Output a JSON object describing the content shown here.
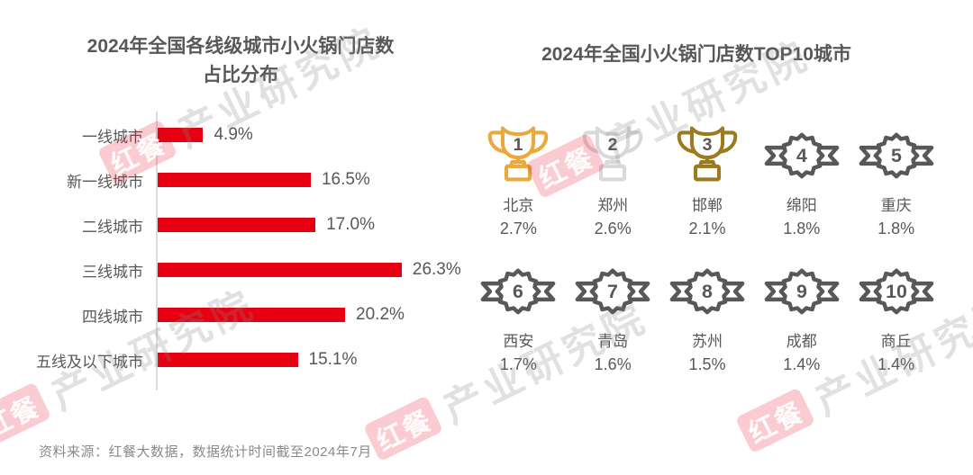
{
  "watermark": {
    "logo": "红餐",
    "text": "产业研究院"
  },
  "left_panel": {
    "title_line1": "2024年全国各线级城市小火锅门店数",
    "title_line2": "占比分布"
  },
  "right_panel": {
    "title": "2024年全国小火锅门店数TOP10城市"
  },
  "footer": {
    "source": "资料来源：红餐大数据，数据统计时间截至2024年7月"
  },
  "colors": {
    "bar_red": "#e60012",
    "text_dark": "#595757",
    "axis_gray": "#dcdcdc",
    "footer_gray": "#8a8a8a",
    "gold": "#eaa93a",
    "silver": "#d9d9d9",
    "bronze": "#9c7a1e",
    "badge_gray": "#595757",
    "watermark_red": "rgba(230,0,24,0.20)",
    "watermark_gray": "rgba(135,135,135,0.25)"
  },
  "chart_data": [
    {
      "type": "bar",
      "orientation": "horizontal",
      "title": "2024年全国各线级城市小火锅门店数占比分布",
      "categories": [
        "一线城市",
        "新一线城市",
        "二线城市",
        "三线城市",
        "四线城市",
        "五线及以下城市"
      ],
      "values": [
        4.9,
        16.5,
        17.0,
        26.3,
        20.2,
        15.1
      ],
      "value_labels": [
        "4.9%",
        "16.5%",
        "17.0%",
        "26.3%",
        "20.2%",
        "15.1%"
      ],
      "unit": "%",
      "xlim": [
        0,
        30
      ],
      "grid": false,
      "legend": false,
      "bar_color": "#e60012"
    },
    {
      "type": "table",
      "title": "2024年全国小火锅门店数TOP10城市",
      "columns": [
        "rank",
        "city",
        "share"
      ],
      "rows": [
        {
          "rank": "1",
          "city": "北京",
          "share": "2.7%",
          "icon": "trophy",
          "color": "#eaa93a"
        },
        {
          "rank": "2",
          "city": "郑州",
          "share": "2.6%",
          "icon": "trophy",
          "color": "#d9d9d9"
        },
        {
          "rank": "3",
          "city": "邯郸",
          "share": "2.1%",
          "icon": "trophy",
          "color": "#9c7a1e"
        },
        {
          "rank": "4",
          "city": "绵阳",
          "share": "1.8%",
          "icon": "badge",
          "color": "#595757"
        },
        {
          "rank": "5",
          "city": "重庆",
          "share": "1.8%",
          "icon": "badge",
          "color": "#595757"
        },
        {
          "rank": "6",
          "city": "西安",
          "share": "1.7%",
          "icon": "badge",
          "color": "#595757"
        },
        {
          "rank": "7",
          "city": "青岛",
          "share": "1.6%",
          "icon": "badge",
          "color": "#595757"
        },
        {
          "rank": "8",
          "city": "苏州",
          "share": "1.5%",
          "icon": "badge",
          "color": "#595757"
        },
        {
          "rank": "9",
          "city": "成都",
          "share": "1.4%",
          "icon": "badge",
          "color": "#595757"
        },
        {
          "rank": "10",
          "city": "商丘",
          "share": "1.4%",
          "icon": "badge",
          "color": "#595757"
        }
      ]
    }
  ]
}
